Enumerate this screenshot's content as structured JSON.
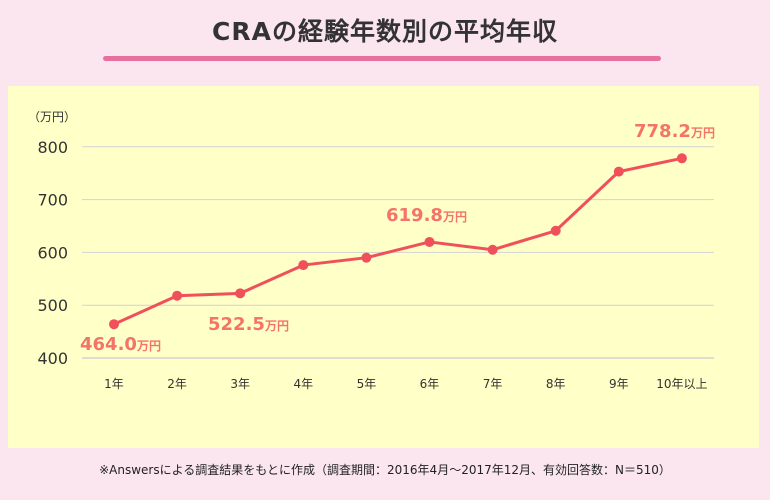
{
  "title": "CRAの経験年数別の平均年収",
  "footnote": "※Answersによる調査結果をもとに作成（調査期間：2016年4月〜2017年12月、有効回答数：N＝510）",
  "chart_data": {
    "type": "line",
    "unit_label": "（万円）",
    "categories": [
      "1年",
      "2年",
      "3年",
      "4年",
      "5年",
      "6年",
      "7年",
      "8年",
      "9年",
      "10年以上"
    ],
    "values": [
      464.0,
      518,
      522.5,
      576,
      590,
      619.8,
      605,
      641,
      753,
      778.2
    ],
    "ylim": [
      400,
      800
    ],
    "yticks": [
      "400",
      "500",
      "600",
      "700",
      "800"
    ],
    "grid": true,
    "annotations": [
      {
        "index": 0,
        "value": "464.0",
        "unit": "万円"
      },
      {
        "index": 2,
        "value": "522.5",
        "unit": "万円"
      },
      {
        "index": 5,
        "value": "619.8",
        "unit": "万円"
      },
      {
        "index": 9,
        "value": "778.2",
        "unit": "万円"
      }
    ],
    "colors": {
      "line": "#f0505a",
      "annotation": "#f4736b",
      "grid": "#d3d3d3",
      "text": "#333333"
    }
  }
}
